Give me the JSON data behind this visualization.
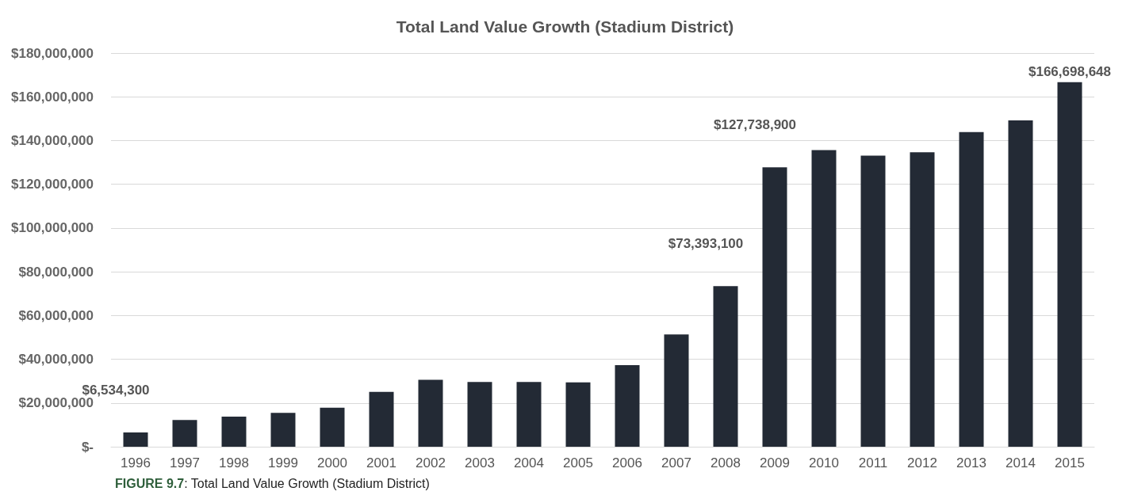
{
  "chart_data": {
    "type": "bar",
    "title": "Total Land Value Growth (Stadium District)",
    "categories": [
      "1996",
      "1997",
      "1998",
      "1999",
      "2000",
      "2001",
      "2002",
      "2003",
      "2004",
      "2005",
      "2006",
      "2007",
      "2008",
      "2009",
      "2010",
      "2011",
      "2012",
      "2013",
      "2014",
      "2015"
    ],
    "values": [
      6534300,
      12200000,
      13800000,
      15500000,
      17800000,
      25100000,
      30600000,
      29600000,
      29600000,
      29400000,
      37300000,
      51300000,
      73393100,
      127738900,
      135600000,
      133100000,
      134600000,
      143900000,
      149200000,
      166698648
    ],
    "value_labels": [
      "$6,534,300",
      null,
      null,
      null,
      null,
      null,
      null,
      null,
      null,
      null,
      null,
      null,
      "$73,393,100",
      "$127,738,900",
      null,
      null,
      null,
      null,
      null,
      "$166,698,648"
    ],
    "color": "#232a35",
    "ylim": [
      0,
      180000000
    ],
    "yticks": [
      {
        "value": 0,
        "label": "$-"
      },
      {
        "value": 20000000,
        "label": "$20,000,000"
      },
      {
        "value": 40000000,
        "label": "$40,000,000"
      },
      {
        "value": 60000000,
        "label": "$60,000,000"
      },
      {
        "value": 80000000,
        "label": "$80,000,000"
      },
      {
        "value": 100000000,
        "label": "$100,000,000"
      },
      {
        "value": 120000000,
        "label": "$120,000,000"
      },
      {
        "value": 140000000,
        "label": "$140,000,000"
      },
      {
        "value": 160000000,
        "label": "$160,000,000"
      },
      {
        "value": 180000000,
        "label": "$180,000,000"
      }
    ],
    "grid": "y",
    "annotations": [
      "FIGURE 9.7: Total Land Value Growth (Stadium District)"
    ]
  }
}
